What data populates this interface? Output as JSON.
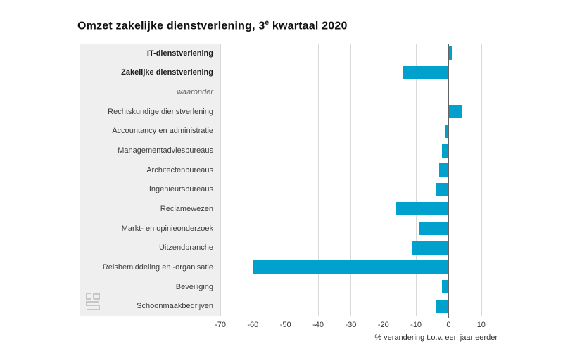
{
  "chart_data": {
    "type": "bar",
    "orientation": "horizontal",
    "title": "Omzet zakelijke dienstverlening, 3e kwartaal 2020",
    "title_parts": {
      "prefix": "Omzet zakelijke dienstverlening, 3",
      "sup": "e",
      "suffix": " kwartaal 2020"
    },
    "xlabel": "% verandering t.o.v. een jaar eerder",
    "xlim": [
      -70,
      15
    ],
    "xticks": [
      -70,
      -60,
      -50,
      -40,
      -30,
      -20,
      -10,
      0,
      10
    ],
    "grid": true,
    "legend": false,
    "bar_color": "#00a1cd",
    "panel_color": "#efefef",
    "rows": [
      {
        "label": "IT-dienstverlening",
        "value": 1,
        "emphasis": "bold"
      },
      {
        "label": "Zakelijke dienstverlening",
        "value": -14,
        "emphasis": "bold"
      },
      {
        "label": "waaronder",
        "value": null,
        "emphasis": "italic"
      },
      {
        "label": "Rechtskundige dienstverlening",
        "value": 4,
        "emphasis": "normal"
      },
      {
        "label": "Accountancy en administratie",
        "value": -1,
        "emphasis": "normal"
      },
      {
        "label": "Managementadviesbureaus",
        "value": -2,
        "emphasis": "normal"
      },
      {
        "label": "Architectenbureaus",
        "value": -3,
        "emphasis": "normal"
      },
      {
        "label": "Ingenieursbureaus",
        "value": -4,
        "emphasis": "normal"
      },
      {
        "label": "Reclamewezen",
        "value": -16,
        "emphasis": "normal"
      },
      {
        "label": "Markt- en opinieonderzoek",
        "value": -9,
        "emphasis": "normal"
      },
      {
        "label": "Uitzendbranche",
        "value": -11,
        "emphasis": "normal"
      },
      {
        "label": "Reisbemiddeling en -organisatie",
        "value": -60,
        "emphasis": "normal"
      },
      {
        "label": "Beveiliging",
        "value": -2,
        "emphasis": "normal"
      },
      {
        "label": "Schoonmaakbedrijven",
        "value": -4,
        "emphasis": "normal"
      }
    ]
  },
  "branding": {
    "logo": "cbs"
  }
}
